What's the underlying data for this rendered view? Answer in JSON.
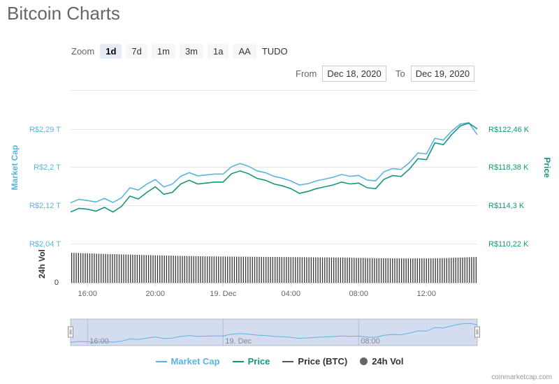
{
  "title": "Bitcoin Charts",
  "zoom": {
    "label": "Zoom",
    "buttons": [
      "1d",
      "7d",
      "1m",
      "3m",
      "1a",
      "AA",
      "TUDO"
    ],
    "selected": "1d"
  },
  "range": {
    "from_label": "From",
    "from_value": "Dec 18, 2020",
    "to_label": "To",
    "to_value": "Dec 19, 2020"
  },
  "axes": {
    "left_title": "Market Cap",
    "right_title": "Price",
    "vol_title": "24h Vol",
    "left_ticks": [
      "R$2,29 T",
      "R$2,2 T",
      "R$2,12 T",
      "R$2,04 T"
    ],
    "right_ticks": [
      "R$122,46 K",
      "R$118,38 K",
      "R$114,3 K",
      "R$110,22 K"
    ],
    "vol_zero": "0",
    "x_ticks": [
      "16:00",
      "20:00",
      "19. Dec",
      "04:00",
      "08:00",
      "12:00"
    ],
    "navigator_ticks": [
      "16:00",
      "19. Dec",
      "08:00"
    ]
  },
  "legend": [
    {
      "label": "Market Cap",
      "color": "#5ab4e0",
      "symbol": "line"
    },
    {
      "label": "Price",
      "color": "#14957a",
      "symbol": "line"
    },
    {
      "label": "Price (BTC)",
      "color": "#555555",
      "symbol": "line"
    },
    {
      "label": "24h Vol",
      "color": "#666666",
      "symbol": "circle"
    }
  ],
  "credits": "coinmarketcap.com",
  "colors": {
    "market_cap": "#5ab4e0",
    "price": "#14957a",
    "volume": "#333333",
    "navigator_fill": "#d4dcf0"
  },
  "chart_data": {
    "type": "line",
    "x_unit": "hours since first point",
    "x_range": [
      0,
      24
    ],
    "series": [
      {
        "name": "Price",
        "axis": "right",
        "unit": "R$ K",
        "x": [
          0,
          0.5,
          1,
          1.5,
          2,
          2.5,
          3,
          3.5,
          4,
          4.5,
          5,
          5.5,
          6,
          6.5,
          7,
          7.5,
          8,
          8.5,
          9,
          9.5,
          10,
          10.5,
          11,
          11.5,
          12,
          12.5,
          13,
          13.5,
          14,
          14.5,
          15,
          15.5,
          16,
          16.5,
          17,
          17.5,
          18,
          18.5,
          19,
          19.5,
          20,
          20.5,
          21,
          21.5,
          22,
          22.5,
          23,
          23.5,
          24
        ],
        "values": [
          113.6,
          114.0,
          113.9,
          113.7,
          114.1,
          113.6,
          114.2,
          115.3,
          115.0,
          115.7,
          116.3,
          115.5,
          115.7,
          116.6,
          117.0,
          116.6,
          116.7,
          116.8,
          116.8,
          117.7,
          118.0,
          117.7,
          117.2,
          117.0,
          116.6,
          116.4,
          116.1,
          115.6,
          115.8,
          116.1,
          116.3,
          116.5,
          116.8,
          116.6,
          116.7,
          116.2,
          116.1,
          117.1,
          117.5,
          117.4,
          118.2,
          119.3,
          119.2,
          121.0,
          120.8,
          121.9,
          122.8,
          123.1,
          122.5
        ]
      },
      {
        "name": "Market Cap",
        "axis": "left",
        "unit": "R$ T",
        "x": [
          0,
          0.5,
          1,
          1.5,
          2,
          2.5,
          3,
          3.5,
          4,
          4.5,
          5,
          5.5,
          6,
          6.5,
          7,
          7.5,
          8,
          8.5,
          9,
          9.5,
          10,
          10.5,
          11,
          11.5,
          12,
          12.5,
          13,
          13.5,
          14,
          14.5,
          15,
          15.5,
          16,
          16.5,
          17,
          17.5,
          18,
          18.5,
          19,
          19.5,
          20,
          20.5,
          21,
          21.5,
          22,
          22.5,
          23,
          23.5,
          24
        ],
        "values": [
          2.129,
          2.137,
          2.134,
          2.131,
          2.139,
          2.13,
          2.14,
          2.162,
          2.157,
          2.17,
          2.18,
          2.164,
          2.17,
          2.187,
          2.195,
          2.188,
          2.19,
          2.192,
          2.192,
          2.208,
          2.215,
          2.209,
          2.199,
          2.195,
          2.187,
          2.183,
          2.177,
          2.168,
          2.171,
          2.177,
          2.181,
          2.185,
          2.191,
          2.187,
          2.189,
          2.179,
          2.177,
          2.197,
          2.204,
          2.202,
          2.217,
          2.238,
          2.236,
          2.27,
          2.266,
          2.286,
          2.301,
          2.304,
          2.278
        ]
      },
      {
        "name": "24h Vol",
        "axis": "volume",
        "x": [
          0,
          2,
          4,
          6,
          8,
          10,
          12,
          14,
          16,
          18,
          20,
          22,
          24
        ],
        "values": [
          1.0,
          0.96,
          0.93,
          0.9,
          0.88,
          0.87,
          0.86,
          0.85,
          0.84,
          0.82,
          0.81,
          0.82,
          0.86
        ]
      }
    ]
  }
}
